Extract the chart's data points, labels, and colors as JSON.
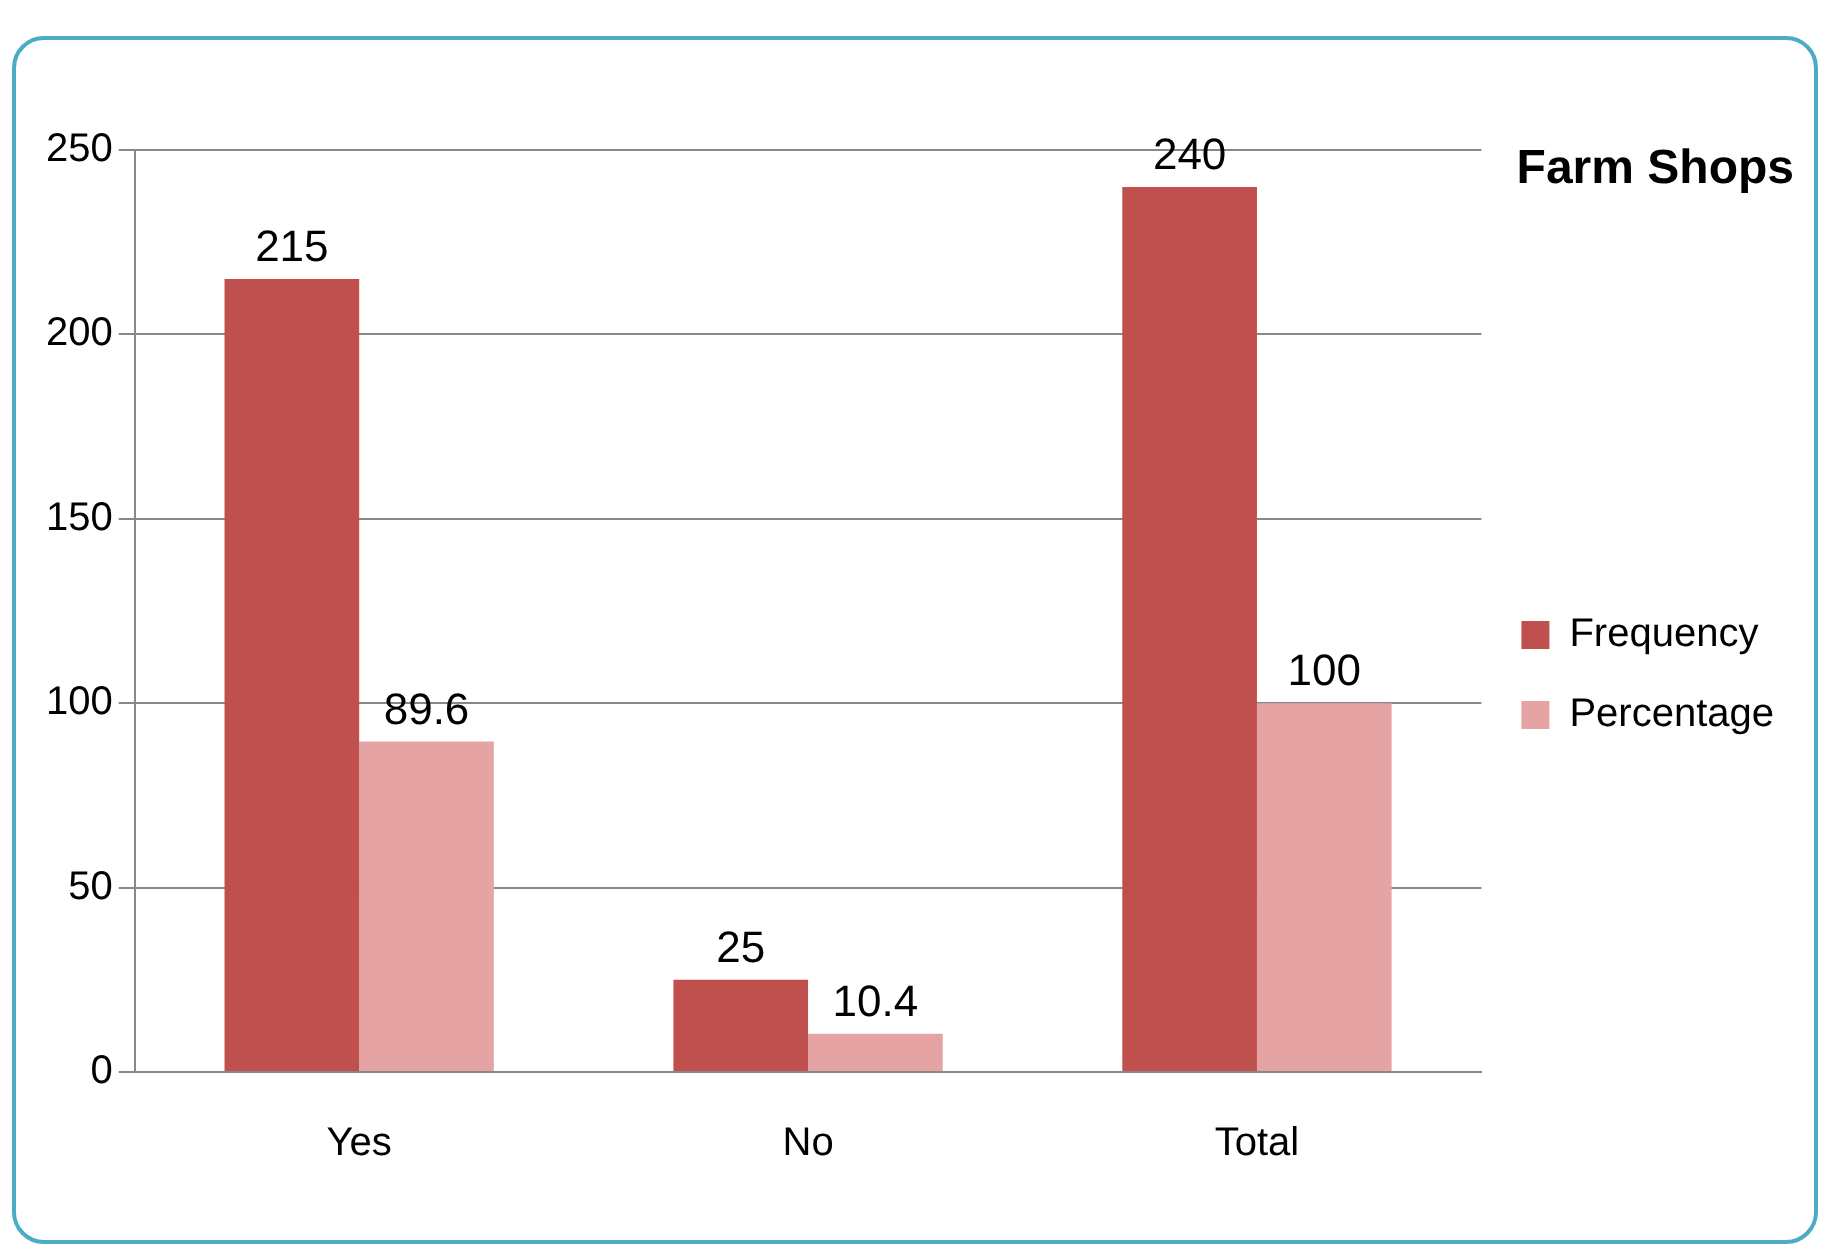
{
  "chart_data": {
    "type": "bar",
    "title": "Farm Shops",
    "categories": [
      "Yes",
      "No",
      "Total"
    ],
    "series": [
      {
        "name": "Frequency",
        "color": "#c0504d",
        "values": [
          215,
          25,
          240
        ]
      },
      {
        "name": "Percentage",
        "color": "#e6a3a3",
        "values": [
          89.6,
          10.4,
          100
        ]
      }
    ],
    "ylim": [
      0,
      250
    ],
    "yticks": [
      0,
      50,
      100,
      150,
      200,
      250
    ],
    "grid": "y",
    "legend": "right",
    "data_labels": true
  }
}
